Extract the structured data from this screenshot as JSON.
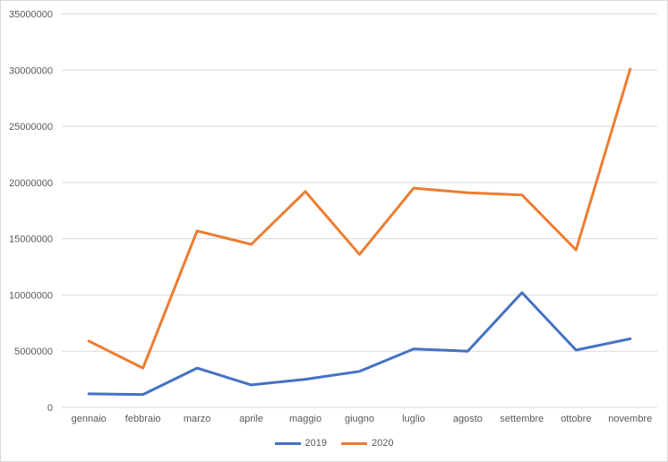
{
  "chart_data": {
    "type": "line",
    "title": "",
    "xlabel": "",
    "ylabel": "",
    "categories": [
      "gennaio",
      "febbraio",
      "marzo",
      "aprile",
      "maggio",
      "giugno",
      "luglio",
      "agosto",
      "settembre",
      "ottobre",
      "novembre"
    ],
    "series": [
      {
        "name": "2019",
        "color": "#4472C4",
        "values": [
          1200000,
          1150000,
          3500000,
          2000000,
          2500000,
          3200000,
          5200000,
          5000000,
          10200000,
          5100000,
          6100000
        ]
      },
      {
        "name": "2020",
        "color": "#ED7D31",
        "values": [
          5900000,
          3500000,
          15700000,
          14500000,
          19200000,
          13600000,
          19500000,
          19100000,
          18900000,
          14000000,
          30100000
        ]
      }
    ],
    "ylim": [
      0,
      35000000
    ],
    "ytick_step": 5000000,
    "ytick_labels": [
      "0",
      "5000000",
      "10000000",
      "15000000",
      "20000000",
      "25000000",
      "30000000",
      "35000000"
    ],
    "grid": true,
    "legend_position": "bottom"
  },
  "colors": {
    "background": "#FFFFFF",
    "border": "#D9D9D9",
    "gridline": "#D9D9D9",
    "axis_text": "#595959",
    "series_2019": "#4472C4",
    "series_2020": "#ED7D31"
  }
}
